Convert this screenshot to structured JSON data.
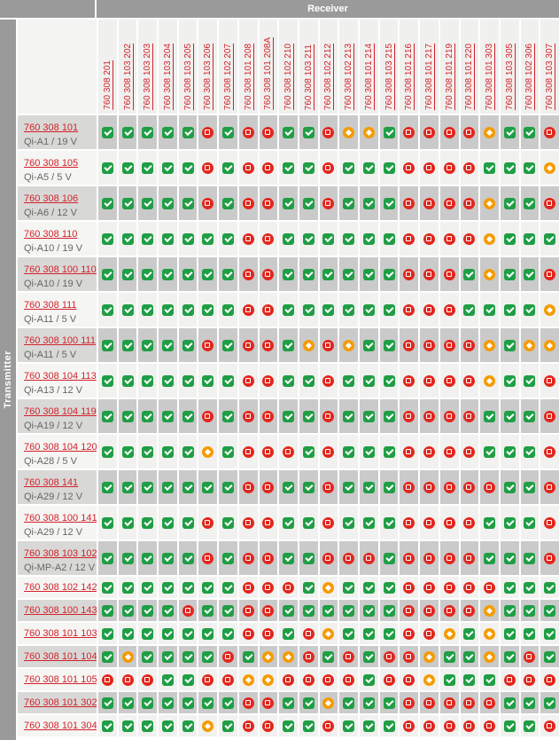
{
  "header": {
    "receiver_label": "Receiver",
    "transmitter_label": "Transmitter"
  },
  "colors": {
    "bar_gray": "#9a9a9a",
    "link_red": "#d2232c",
    "row_odd": "#cacaca",
    "row_even": "#f1f1ef",
    "green": "#1f9e45",
    "red": "#e2261d",
    "orange": "#f59b00"
  },
  "statuses": {
    "G": {
      "icon": "check-icon",
      "color": "#1f9e45"
    },
    "R": {
      "icon": "stop-icon",
      "color": "#e2261d"
    },
    "O": {
      "icon": "warning-icon",
      "color": "#f59b00"
    }
  },
  "columns": [
    "760 308 201",
    "760 308 103 202",
    "760 308 103 203",
    "760 308 103 204",
    "760 308 103 205",
    "760 308 103 206",
    "760 308 102 207",
    "760 308 101 208",
    "760 308 101 208A",
    "760 308 102 210",
    "760 308 103 211",
    "760 308 102 212",
    "760 308 102 213",
    "760 308 101 214",
    "760 308 103 215",
    "760 308 101 216",
    "760 308 101 217",
    "760 308 101 219",
    "760 308 101 220",
    "760 308 101 303",
    "760 308 103 305",
    "760 308 102 306",
    "760 308 103 307"
  ],
  "rows": [
    {
      "label": "760 308 101",
      "subtitle": "Qi-A1 / 19 V",
      "cells": "GGGGGRGRRGGROOGRRRROGGR"
    },
    {
      "label": "760 308 105",
      "subtitle": "Qi-A5 / 5 V",
      "cells": "GGGGGRGRRGGRGGGRRRRGGGO"
    },
    {
      "label": "760 308 106",
      "subtitle": "Qi-A6 / 12 V",
      "cells": "GGGGGRGRRGGRGGGRRRROGGR"
    },
    {
      "label": "760 308 110",
      "subtitle": "Qi-A10 / 19 V",
      "cells": "GGGGGGGRRGGGGGGRRRROGGG"
    },
    {
      "label": "760 308 100 110",
      "subtitle": "Qi-A10 / 19 V",
      "cells": "GGGGGGGRRGGGGGGRRRGOGGR"
    },
    {
      "label": "760 308 111",
      "subtitle": "Qi-A11 / 5 V",
      "cells": "GGGGGGGRRGGGGGGRRRGGGGO"
    },
    {
      "label": "760 308 100 111",
      "subtitle": "Qi-A11 / 5 V",
      "cells": "GGGGGRGRRGOROGGRRRROGOO"
    },
    {
      "label": "760 308 104 113",
      "subtitle": "Qi-A13 / 12 V",
      "cells": "GGGGGGGRRGGRGGGRRRROGGR"
    },
    {
      "label": "760 308 104 119",
      "subtitle": "Qi-A19 / 12 V",
      "cells": "GGGGGRGRRGGRGGGRRRRGGGR"
    },
    {
      "label": "760 308 104 120",
      "subtitle": "Qi-A28 / 5 V",
      "cells": "GGGGGOGRRRGRGGGRRRRGGGR"
    },
    {
      "label": "760 308 141",
      "subtitle": "Qi-A29 / 12 V",
      "cells": "GGGGGGGRRGGRGGGRRRRRGGR"
    },
    {
      "label": "760 308 100 141",
      "subtitle": "Qi-A29 / 12 V",
      "cells": "GGGGGRGRRGGRGGGRRRRGGGR"
    },
    {
      "label": "760 308 103 102",
      "subtitle": "Qi-MP-A2 / 12 V",
      "cells": "GGGGGRGRRGGRRRGRRRRGGGR"
    },
    {
      "label": "760 308 102 142",
      "subtitle": "",
      "cells": "GGGGGGGRRRGOGGGRRRRRGGG"
    },
    {
      "label": "760 308 100 143",
      "subtitle": "",
      "cells": "GGGGRGGRRGGGGGGRRRROGGG"
    },
    {
      "label": "760 308 101 103",
      "subtitle": "",
      "cells": "GGGGGGGRRGROGGGRROGOGGG"
    },
    {
      "label": "760 308 101 104",
      "subtitle": "",
      "cells": "GOGGGGRGOORGRGRROGGOGRG"
    },
    {
      "label": "760 308 101 105",
      "subtitle": "",
      "cells": "RRRGGRROORRRRGRROGGGRRR"
    },
    {
      "label": "760 308 101 302",
      "subtitle": "",
      "cells": "GGGGGGGRRGGOGGGRRRRRGGG"
    },
    {
      "label": "760 308 101 304",
      "subtitle": "",
      "cells": "GGGGGOGRRGGRGGGRRRRRGGR"
    }
  ]
}
